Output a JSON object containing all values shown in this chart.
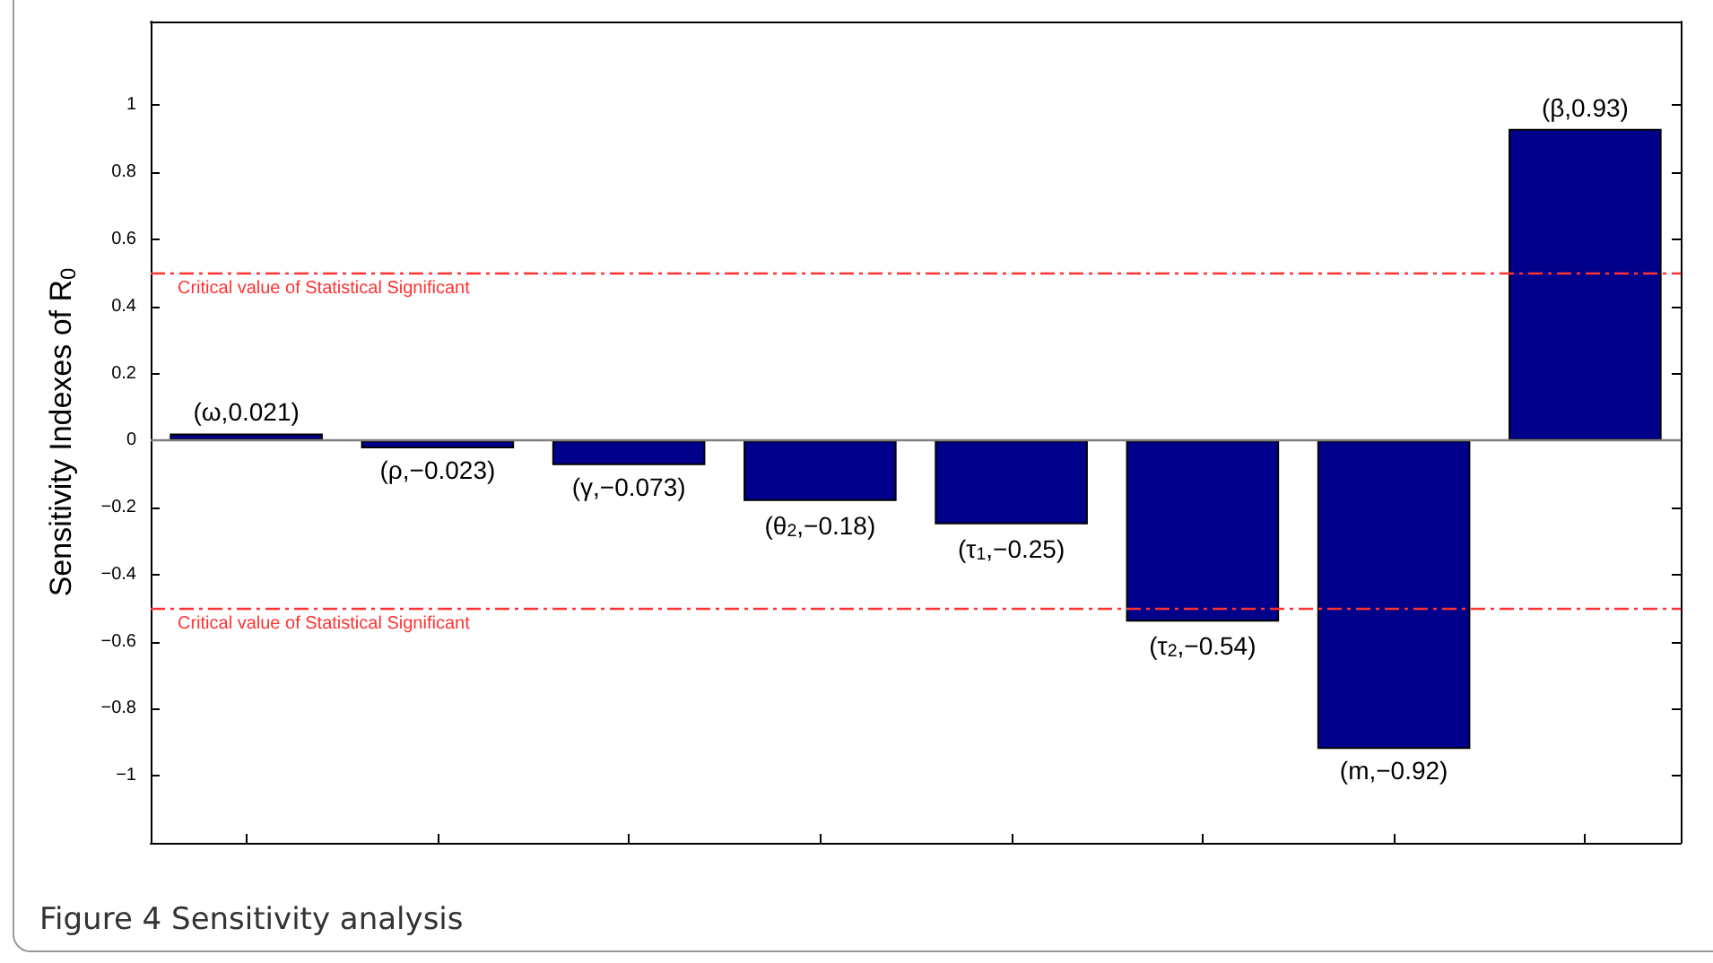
{
  "chart_data": {
    "type": "bar",
    "ylabel": "Sensitivity Indexes of R$_{0}$",
    "categories": [
      null,
      null,
      null,
      null,
      null,
      null,
      null,
      null
    ],
    "values": [
      0.021,
      -0.023,
      -0.073,
      -0.18,
      -0.25,
      -0.54,
      -0.92,
      0.93
    ],
    "color": "#00008b",
    "value_labels": [
      "(ω,0.021)",
      "(ρ,−0.023)",
      "(γ,−0.073)",
      "(θ$_{2}$,−0.18)",
      "(τ$_{1}$,−0.25)",
      "(τ$_{2}$,−0.54)",
      "(m,−0.92)",
      "(β,0.93)"
    ],
    "ylim": [
      -1.2,
      1.25
    ],
    "yticks": [
      {
        "value": -1,
        "label": "−1"
      },
      {
        "value": -0.8,
        "label": "−0.8"
      },
      {
        "value": -0.6,
        "label": "−0.6"
      },
      {
        "value": -0.4,
        "label": "−0.4"
      },
      {
        "value": -0.2,
        "label": "−0.2"
      },
      0,
      0.2,
      0.4,
      0.6,
      0.8,
      1
    ],
    "ref_lines": [
      {
        "axis": "y",
        "value": 0.5,
        "label": "Critical value of Statistical Significant",
        "color": "#ff3333",
        "line_style": "dashdot"
      },
      {
        "axis": "y",
        "value": -0.5,
        "label": "Critical value of Statistical Significant",
        "color": "#ff3333",
        "line_style": "dashdot"
      },
      {
        "axis": "y",
        "value": 0,
        "color": "#808080",
        "line_style": "solid"
      }
    ],
    "grid": false,
    "annotations": [
      "Figure 4 Sensitivity analysis"
    ]
  }
}
